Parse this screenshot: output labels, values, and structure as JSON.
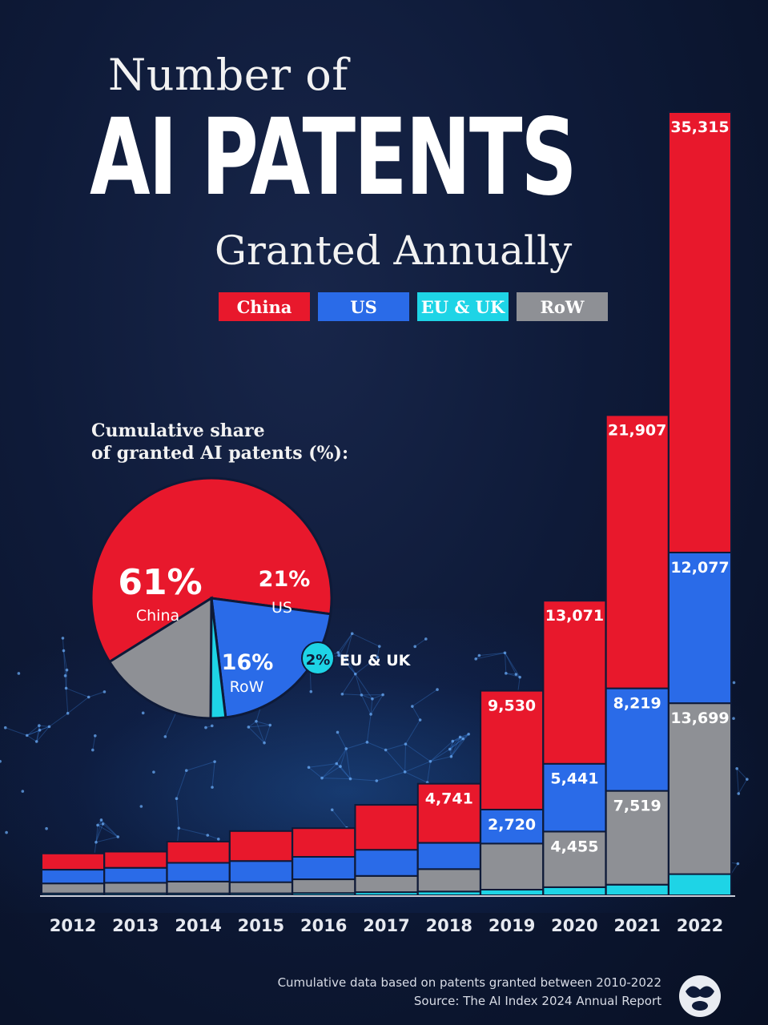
{
  "title": {
    "line1": "Number of",
    "line2": "AI PATENTS",
    "line3": "Granted Annually"
  },
  "colors": {
    "China": "#e8182c",
    "US": "#2a6be8",
    "EU & UK": "#1ed4e6",
    "RoW": "#8e9095",
    "background": "#0e1a38"
  },
  "legend": [
    {
      "label": "China",
      "series": "China"
    },
    {
      "label": "US",
      "series": "US"
    },
    {
      "label": "EU & UK",
      "series": "EU & UK"
    },
    {
      "label": "RoW",
      "series": "RoW"
    }
  ],
  "pie": {
    "heading_line1": "Cumulative share",
    "heading_line2": "of granted AI patents (%):",
    "slices": [
      {
        "name": "China",
        "value": 61,
        "label": "61%"
      },
      {
        "name": "US",
        "value": 21,
        "label": "21%"
      },
      {
        "name": "EU & UK",
        "value": 2,
        "label": "2%"
      },
      {
        "name": "RoW",
        "value": 16,
        "label": "16%"
      }
    ]
  },
  "chart_data": [
    {
      "type": "bar",
      "stacked": true,
      "categories": [
        "2012",
        "2013",
        "2014",
        "2015",
        "2016",
        "2017",
        "2018",
        "2019",
        "2020",
        "2021",
        "2022"
      ],
      "series": [
        {
          "name": "EU & UK",
          "values": [
            150,
            150,
            150,
            150,
            180,
            250,
            300,
            450,
            650,
            850,
            1700
          ]
        },
        {
          "name": "RoW",
          "values": [
            800,
            850,
            950,
            900,
            1100,
            1300,
            1800,
            3700,
            4455,
            7519,
            13699
          ]
        },
        {
          "name": "US",
          "values": [
            1100,
            1200,
            1500,
            1700,
            1800,
            2100,
            2100,
            2720,
            5441,
            8219,
            12077
          ]
        },
        {
          "name": "China",
          "values": [
            1300,
            1300,
            1700,
            2400,
            2300,
            3600,
            4741,
            9530,
            13071,
            21907,
            35315
          ]
        }
      ],
      "data_labels": {
        "2019": {
          "China": "9,530",
          "US": "2,720"
        },
        "2020": {
          "China": "13,071",
          "US": "5,441",
          "RoW": "4,455"
        },
        "2021": {
          "China": "21,907",
          "US": "8,219",
          "RoW": "7,519"
        },
        "2022": {
          "China": "35,315",
          "US": "12,077",
          "RoW": "13,699"
        },
        "2018": {
          "China": "4,741"
        }
      },
      "legend": "top",
      "grid": false
    },
    {
      "type": "pie",
      "title": "Cumulative share of granted AI patents (%):",
      "labels": [
        "China",
        "US",
        "EU & UK",
        "RoW"
      ],
      "values": [
        61,
        21,
        2,
        16
      ]
    }
  ],
  "footer": {
    "note": "Cumulative data based on patents granted between 2010-2022",
    "source": "Source: The AI Index 2024 Annual Report"
  },
  "logo_icon": "visual-capitalist-logo-icon"
}
